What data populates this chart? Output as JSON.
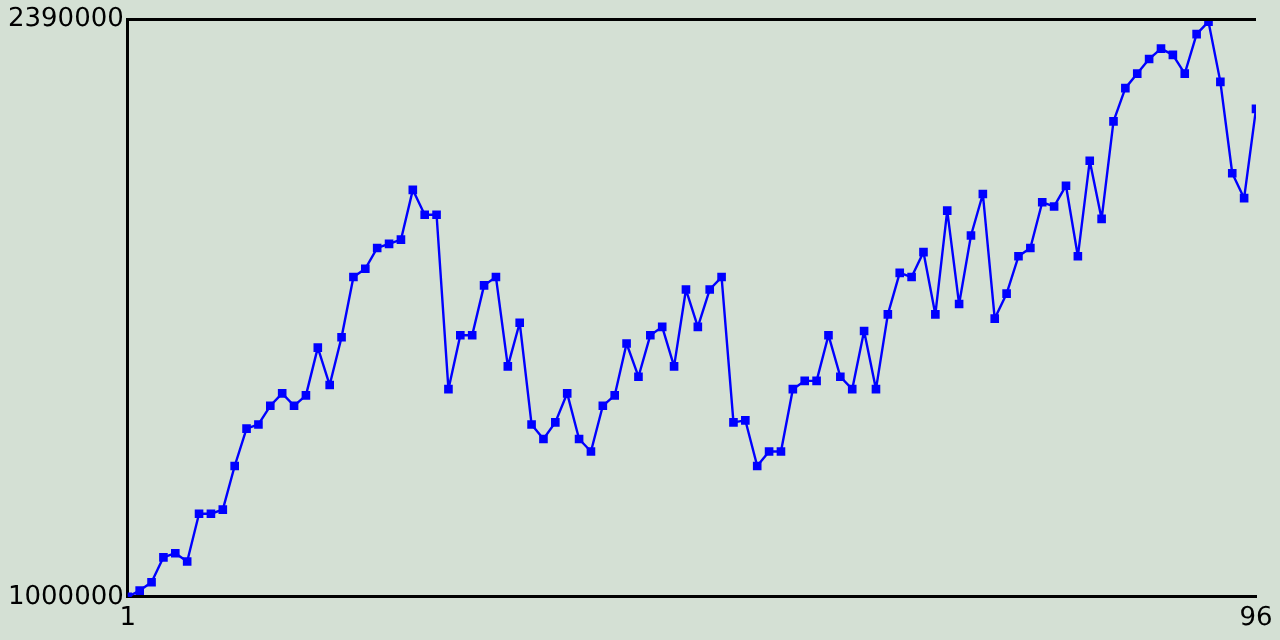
{
  "chart_data": {
    "type": "line",
    "x": [
      1,
      2,
      3,
      4,
      5,
      6,
      7,
      8,
      9,
      10,
      11,
      12,
      13,
      14,
      15,
      16,
      17,
      18,
      19,
      20,
      21,
      22,
      23,
      24,
      25,
      26,
      27,
      28,
      29,
      30,
      31,
      32,
      33,
      34,
      35,
      36,
      37,
      38,
      39,
      40,
      41,
      42,
      43,
      44,
      45,
      46,
      47,
      48,
      49,
      50,
      51,
      52,
      53,
      54,
      55,
      56,
      57,
      58,
      59,
      60,
      61,
      62,
      63,
      64,
      65,
      66,
      67,
      68,
      69,
      70,
      71,
      72,
      73,
      74,
      75,
      76,
      77,
      78,
      79,
      80,
      81,
      82,
      83,
      84,
      85,
      86,
      87,
      88,
      89,
      90,
      91,
      92,
      93,
      94,
      95,
      96
    ],
    "series": [
      {
        "color": "#0000ff",
        "values": [
          1000000,
          1015000,
          1035000,
          1095000,
          1105000,
          1085000,
          1200000,
          1200000,
          1210000,
          1315000,
          1405000,
          1415000,
          1460000,
          1490000,
          1460000,
          1485000,
          1600000,
          1510000,
          1625000,
          1770000,
          1790000,
          1840000,
          1850000,
          1860000,
          1980000,
          1920000,
          1920000,
          1500000,
          1630000,
          1630000,
          1750000,
          1770000,
          1555000,
          1660000,
          1415000,
          1380000,
          1420000,
          1490000,
          1380000,
          1350000,
          1460000,
          1485000,
          1610000,
          1530000,
          1630000,
          1650000,
          1555000,
          1740000,
          1650000,
          1740000,
          1770000,
          1420000,
          1425000,
          1315000,
          1350000,
          1350000,
          1500000,
          1520000,
          1520000,
          1630000,
          1530000,
          1500000,
          1640000,
          1500000,
          1680000,
          1780000,
          1770000,
          1830000,
          1680000,
          1930000,
          1705000,
          1870000,
          1970000,
          1670000,
          1730000,
          1820000,
          1840000,
          1950000,
          1940000,
          1990000,
          1820000,
          2050000,
          1910000,
          2145000,
          2225000,
          2260000,
          2295000,
          2320000,
          2305000,
          2260000,
          2355000,
          2385000,
          2240000,
          2020000,
          1960000,
          2175000
        ]
      }
    ],
    "xlim": [
      1,
      96
    ],
    "xticks": [
      1,
      96
    ],
    "ylim": [
      1000000,
      2390000
    ],
    "yticks": [
      1000000,
      2390000
    ],
    "grid": false,
    "legend": false,
    "marker": "square",
    "line_style": "solid"
  }
}
